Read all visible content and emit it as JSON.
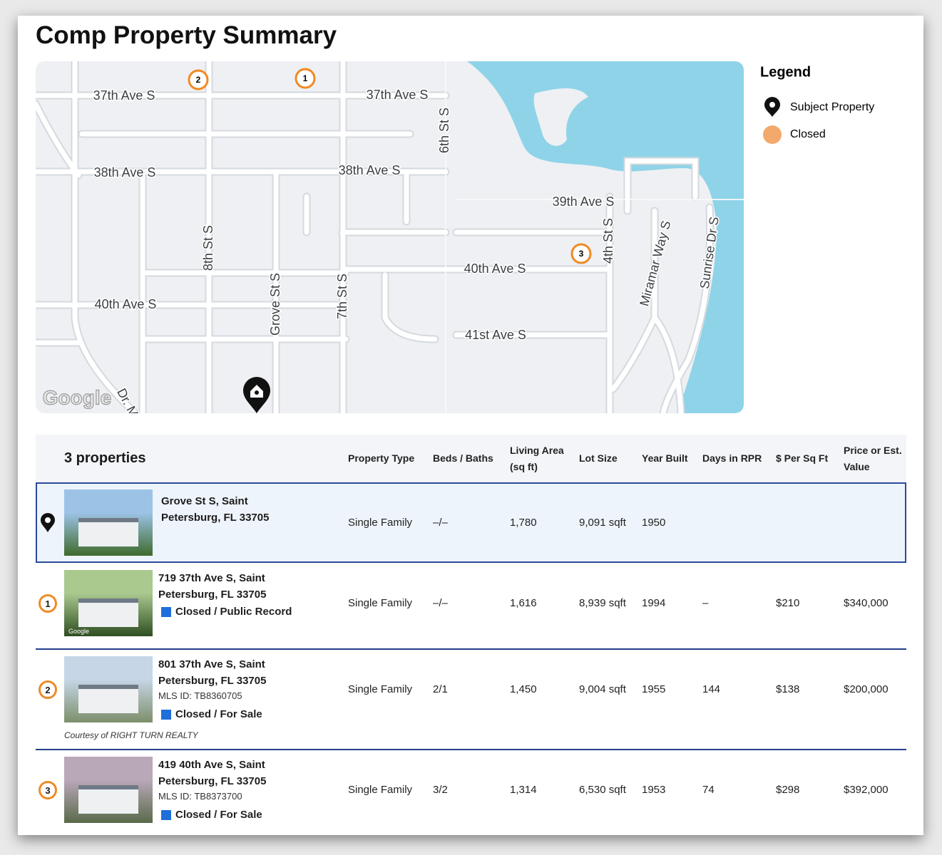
{
  "header": {
    "title": "Comp Property Summary"
  },
  "map": {
    "labels": [
      "37th Ave S",
      "37th Ave S",
      "38th Ave S",
      "38th Ave S",
      "39th Ave S",
      "40th Ave S",
      "40th Ave S",
      "41st Ave S",
      "6th St S",
      "8th St S",
      "Grove St S",
      "7th St S",
      "4th St S",
      "Miramar Way S",
      "Sunrise Dr S",
      "Dr. M"
    ],
    "markers": [
      "1",
      "2",
      "3"
    ],
    "attribution": "Google"
  },
  "legend": {
    "title": "Legend",
    "items": [
      "Subject Property",
      "Closed"
    ]
  },
  "table": {
    "count": "3 properties",
    "columns": {
      "property_type": "Property Type",
      "beds_baths": "Beds / Baths",
      "living_area": "Living Area (sq ft)",
      "lot_size": "Lot Size",
      "year_built": "Year Built",
      "days_in_rpr": "Days in RPR",
      "per_sq_ft": "$ Per Sq Ft",
      "price": "Price or Est. Value"
    },
    "rows": [
      {
        "address": [
          "Grove St S, Saint",
          "Petersburg, FL 33705"
        ],
        "property_type": "Single Family",
        "beds_baths": "–/–",
        "living_area": "1,780",
        "lot_size": "9,091 sqft",
        "year_built": "1950"
      },
      {
        "marker": "1",
        "photo_badge": "Google",
        "address": [
          "719 37th Ave S, Saint",
          "Petersburg, FL 33705"
        ],
        "status": "Closed / Public Record",
        "property_type": "Single Family",
        "beds_baths": "–/–",
        "living_area": "1,616",
        "lot_size": "8,939 sqft",
        "year_built": "1994",
        "days_in_rpr": "–",
        "per_sq_ft": "$210",
        "price": "$340,000"
      },
      {
        "marker": "2",
        "address": [
          "801 37th Ave S, Saint",
          "Petersburg, FL 33705"
        ],
        "mls": "MLS ID: TB8360705",
        "status": "Closed / For Sale",
        "courtesy": "Courtesy of RIGHT TURN REALTY",
        "property_type": "Single Family",
        "beds_baths": "2/1",
        "living_area": "1,450",
        "lot_size": "9,004 sqft",
        "year_built": "1955",
        "days_in_rpr": "144",
        "per_sq_ft": "$138",
        "price": "$200,000"
      },
      {
        "marker": "3",
        "address": [
          "419 40th Ave S, Saint",
          "Petersburg, FL 33705"
        ],
        "mls": "MLS ID: TB8373700",
        "status": "Closed / For Sale",
        "property_type": "Single Family",
        "beds_baths": "3/2",
        "living_area": "1,314",
        "lot_size": "6,530 sqft",
        "year_built": "1953",
        "days_in_rpr": "74",
        "per_sq_ft": "$298",
        "price": "$392,000"
      }
    ]
  }
}
